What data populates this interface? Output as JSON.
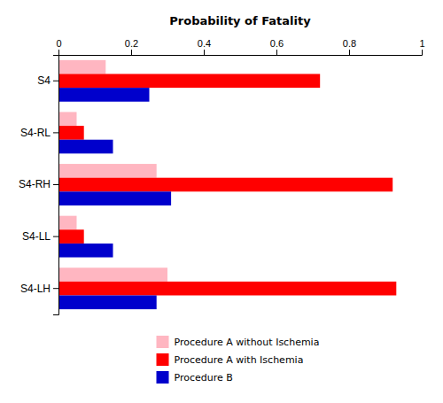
{
  "chart_data": {
    "type": "bar",
    "orientation": "horizontal",
    "xlabel": "Probability of Fatality",
    "categories": [
      "S4",
      "S4-RL",
      "S4-RH",
      "S4-LL",
      "S4-LH"
    ],
    "series": [
      {
        "name": "Procedure A without Ischemia",
        "color": "#FFB6C1",
        "values": [
          0.13,
          0.05,
          0.27,
          0.05,
          0.3
        ]
      },
      {
        "name": "Procedure A with Ischemia",
        "color": "#FF0000",
        "values": [
          0.72,
          0.07,
          0.92,
          0.07,
          0.93
        ]
      },
      {
        "name": "Procedure B",
        "color": "#0000CC",
        "values": [
          0.25,
          0.15,
          0.31,
          0.15,
          0.27
        ]
      }
    ],
    "xlim": [
      0,
      1
    ],
    "xticks": [
      0,
      0.2,
      0.4,
      0.6,
      0.8,
      1
    ],
    "grid": false,
    "legend": "bottom"
  }
}
